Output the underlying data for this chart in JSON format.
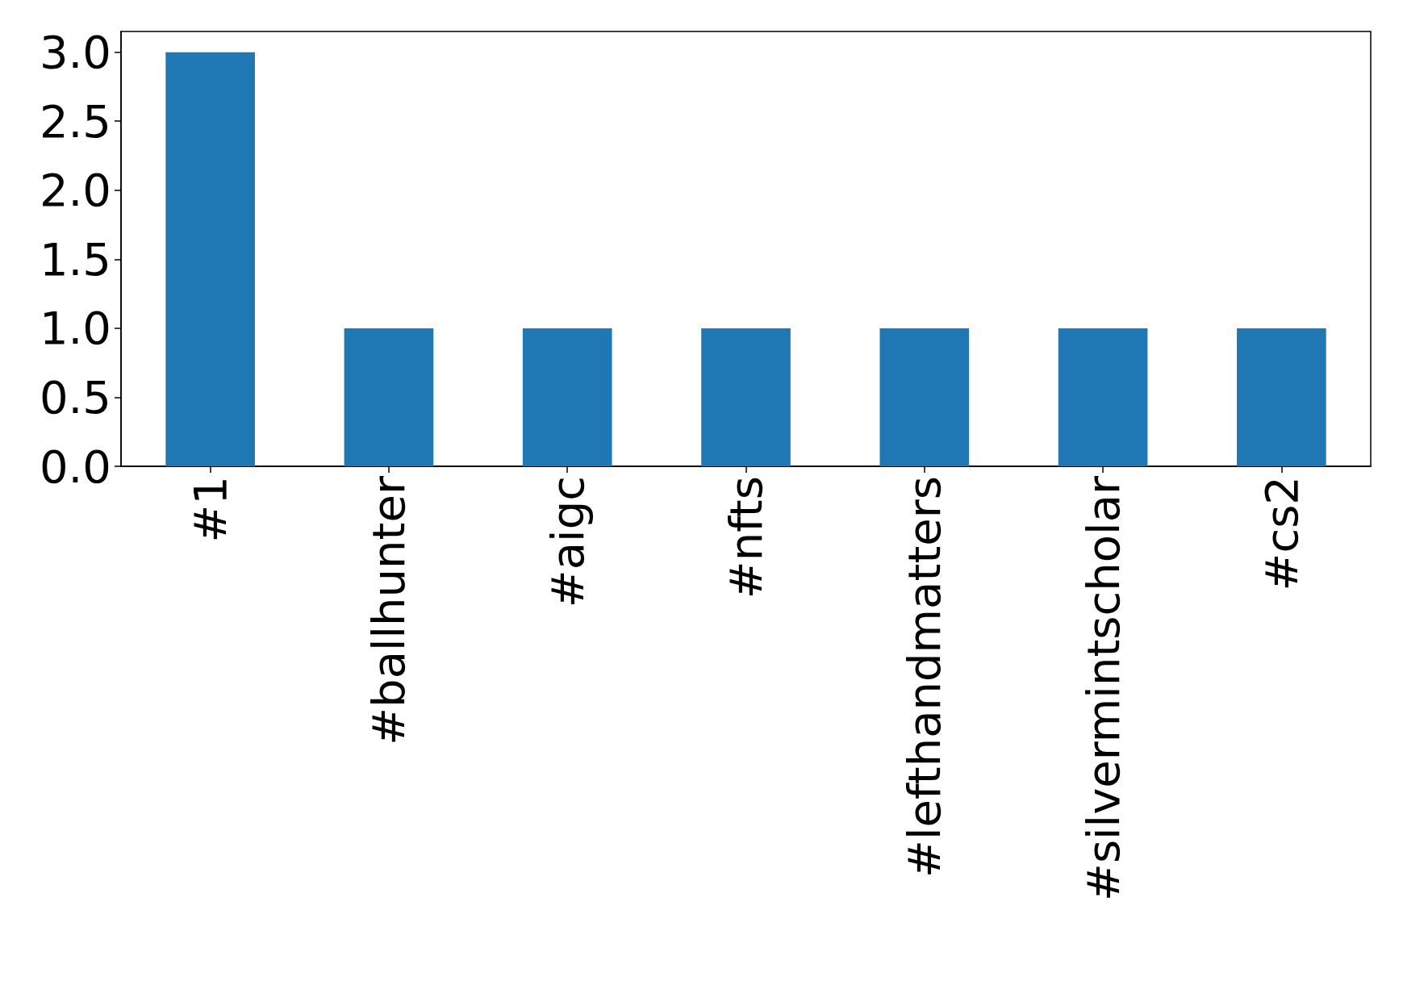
{
  "chart_data": {
    "type": "bar",
    "categories": [
      "#1",
      "#ballhunter",
      "#aigc",
      "#nfts",
      "#lefthandmatters",
      "#silvermintscholar",
      "#cs2"
    ],
    "values": [
      3,
      1,
      1,
      1,
      1,
      1,
      1
    ],
    "color": "#1f77b4",
    "ylim": [
      0,
      3.15
    ],
    "yticks": [
      {
        "value": 0,
        "label": "0.0"
      },
      {
        "value": 0.5,
        "label": "0.5"
      },
      {
        "value": 1,
        "label": "1.0"
      },
      {
        "value": 1.5,
        "label": "1.5"
      },
      {
        "value": 2,
        "label": "2.0"
      },
      {
        "value": 2.5,
        "label": "2.5"
      },
      {
        "value": 3,
        "label": "3.0"
      }
    ],
    "grid": false
  }
}
